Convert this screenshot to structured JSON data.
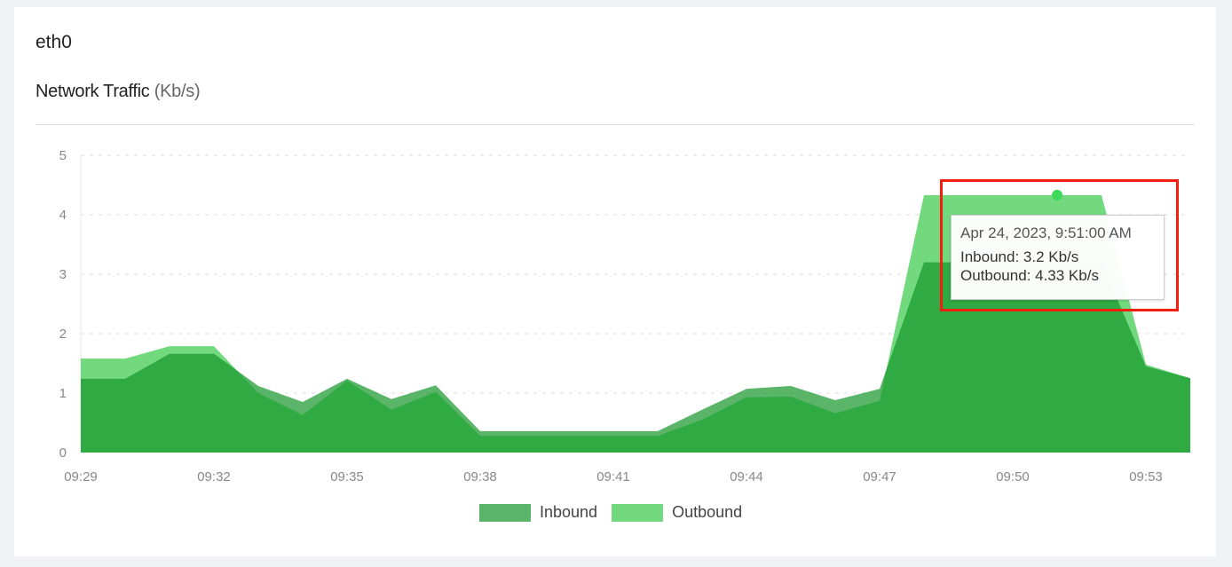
{
  "card": {
    "title": "eth0",
    "chart_title": "Network Traffic",
    "chart_unit": "(Kb/s)"
  },
  "tooltip": {
    "date": "Apr 24, 2023, 9:51:00 AM",
    "inbound": "Inbound: 3.2 Kb/s",
    "outbound": "Outbound: 4.33 Kb/s"
  },
  "chart_data": {
    "type": "area",
    "title": "Network Traffic (Kb/s)",
    "x": [
      "09:29",
      "09:30",
      "09:31",
      "09:32",
      "09:33",
      "09:34",
      "09:35",
      "09:36",
      "09:37",
      "09:38",
      "09:39",
      "09:40",
      "09:41",
      "09:42",
      "09:43",
      "09:44",
      "09:45",
      "09:46",
      "09:47",
      "09:48",
      "09:49",
      "09:50",
      "09:51",
      "09:52",
      "09:53",
      "09:54"
    ],
    "x_tick_labels": [
      "09:29",
      "09:32",
      "09:35",
      "09:38",
      "09:41",
      "09:44",
      "09:47",
      "09:50",
      "09:53"
    ],
    "y_tick_labels": [
      "0",
      "1",
      "2",
      "3",
      "4",
      "5"
    ],
    "ylim": [
      0,
      5
    ],
    "grid": "horizontal dashed",
    "legend": "bottom",
    "series": [
      {
        "name": "Inbound",
        "color": "#5ab568",
        "values": [
          1.24,
          1.24,
          1.66,
          1.66,
          1.12,
          0.85,
          1.24,
          0.9,
          1.13,
          0.36,
          0.36,
          0.36,
          0.36,
          0.36,
          0.72,
          1.07,
          1.12,
          0.88,
          1.07,
          3.2,
          3.2,
          3.2,
          3.2,
          3.2,
          1.45,
          1.25
        ]
      },
      {
        "name": "Outbound",
        "color": "#72d97f",
        "values": [
          1.58,
          1.58,
          1.79,
          1.79,
          1.0,
          0.63,
          1.21,
          0.72,
          1.02,
          0.28,
          0.28,
          0.28,
          0.28,
          0.28,
          0.55,
          0.93,
          0.94,
          0.66,
          0.87,
          4.33,
          4.33,
          4.33,
          4.33,
          4.33,
          1.48,
          1.25
        ]
      }
    ],
    "highlight": {
      "x": "09:51",
      "series": "Outbound",
      "value": 4.33
    }
  }
}
